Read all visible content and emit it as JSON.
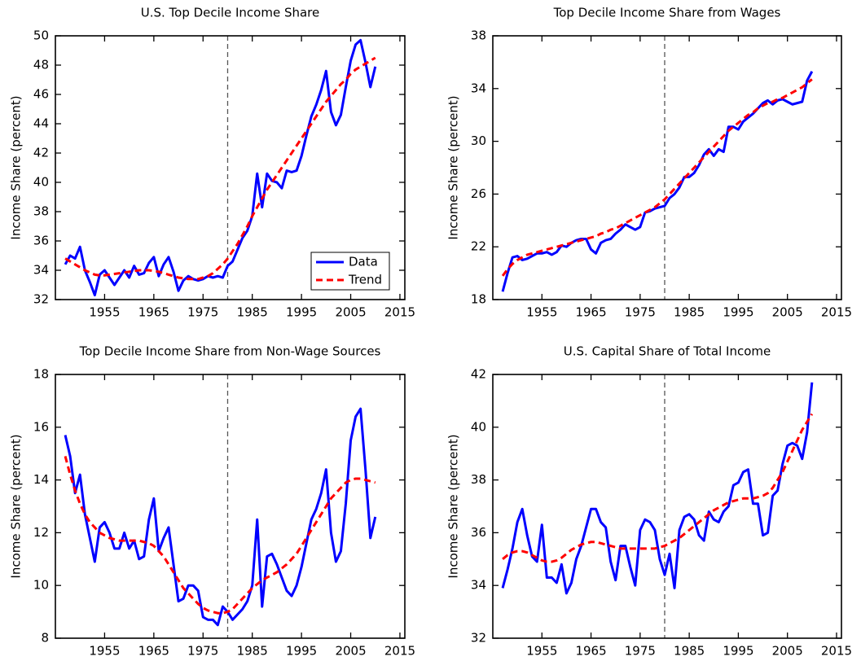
{
  "chart_data": [
    {
      "type": "line",
      "title": "U.S. Top Decile Income Share",
      "ylabel": "Income Share (percent)",
      "x": [
        1947,
        1948,
        1949,
        1950,
        1951,
        1952,
        1953,
        1954,
        1955,
        1956,
        1957,
        1958,
        1959,
        1960,
        1961,
        1962,
        1963,
        1964,
        1965,
        1966,
        1967,
        1968,
        1969,
        1970,
        1971,
        1972,
        1973,
        1974,
        1975,
        1976,
        1977,
        1978,
        1979,
        1980,
        1981,
        1982,
        1983,
        1984,
        1985,
        1986,
        1987,
        1988,
        1989,
        1990,
        1991,
        1992,
        1993,
        1994,
        1995,
        1996,
        1997,
        1998,
        1999,
        2000,
        2001,
        2002,
        2003,
        2004,
        2005,
        2006,
        2007,
        2008,
        2009,
        2010
      ],
      "series": [
        {
          "name": "Data",
          "color": "#0000ff",
          "dash": false,
          "values": [
            34.4,
            35.0,
            34.8,
            35.6,
            34.0,
            33.2,
            32.3,
            33.7,
            34.0,
            33.5,
            33.0,
            33.5,
            34.0,
            33.5,
            34.3,
            33.7,
            33.8,
            34.5,
            34.9,
            33.6,
            34.4,
            34.9,
            33.9,
            32.6,
            33.3,
            33.6,
            33.4,
            33.3,
            33.4,
            33.6,
            33.5,
            33.6,
            33.5,
            34.3,
            34.6,
            35.4,
            36.2,
            36.7,
            37.7,
            40.6,
            38.3,
            40.6,
            40.1,
            40.0,
            39.6,
            40.8,
            40.7,
            40.8,
            41.8,
            43.2,
            44.5,
            45.3,
            46.3,
            47.6,
            44.8,
            43.9,
            44.6,
            46.5,
            48.3,
            49.4,
            49.7,
            48.2,
            46.5,
            47.9
          ]
        },
        {
          "name": "Trend",
          "color": "#ff0000",
          "dash": true,
          "values": [
            34.8,
            34.6,
            34.4,
            34.2,
            34.0,
            33.85,
            33.7,
            33.65,
            33.65,
            33.7,
            33.75,
            33.8,
            33.85,
            33.9,
            33.95,
            34.0,
            34.0,
            34.0,
            33.95,
            33.9,
            33.8,
            33.7,
            33.6,
            33.5,
            33.45,
            33.4,
            33.4,
            33.4,
            33.5,
            33.6,
            33.8,
            34.1,
            34.4,
            34.8,
            35.3,
            35.8,
            36.4,
            37.0,
            37.7,
            38.3,
            38.9,
            39.5,
            40.0,
            40.5,
            41.0,
            41.5,
            42.0,
            42.5,
            43.0,
            43.5,
            44.0,
            44.5,
            45.0,
            45.5,
            45.9,
            46.3,
            46.7,
            47.0,
            47.4,
            47.7,
            47.9,
            48.1,
            48.3,
            48.5
          ]
        }
      ],
      "xlim": [
        1945,
        2016
      ],
      "xticks": [
        1955,
        1965,
        1975,
        1985,
        1995,
        2005,
        2015
      ],
      "ylim": [
        32,
        50
      ],
      "yticks": [
        32,
        34,
        36,
        38,
        40,
        42,
        44,
        46,
        48,
        50
      ],
      "vline": 1980,
      "legend": "lower right"
    },
    {
      "type": "line",
      "title": "Top Decile Income Share from Wages",
      "ylabel": "Income Share (percent)",
      "x": [
        1947,
        1948,
        1949,
        1950,
        1951,
        1952,
        1953,
        1954,
        1955,
        1956,
        1957,
        1958,
        1959,
        1960,
        1961,
        1962,
        1963,
        1964,
        1965,
        1966,
        1967,
        1968,
        1969,
        1970,
        1971,
        1972,
        1973,
        1974,
        1975,
        1976,
        1977,
        1978,
        1979,
        1980,
        1981,
        1982,
        1983,
        1984,
        1985,
        1986,
        1987,
        1988,
        1989,
        1990,
        1991,
        1992,
        1993,
        1994,
        1995,
        1996,
        1997,
        1998,
        1999,
        2000,
        2001,
        2002,
        2003,
        2004,
        2005,
        2006,
        2007,
        2008,
        2009,
        2010
      ],
      "series": [
        {
          "color": "#0000ff",
          "dash": false,
          "values": [
            18.6,
            20.0,
            21.2,
            21.3,
            21.0,
            21.1,
            21.3,
            21.5,
            21.5,
            21.6,
            21.4,
            21.6,
            22.1,
            22.0,
            22.3,
            22.5,
            22.6,
            22.6,
            21.8,
            21.5,
            22.3,
            22.5,
            22.6,
            23.0,
            23.3,
            23.7,
            23.5,
            23.3,
            23.5,
            24.6,
            24.7,
            24.9,
            25.0,
            25.1,
            25.7,
            26.0,
            26.5,
            27.3,
            27.3,
            27.6,
            28.2,
            29.0,
            29.4,
            28.9,
            29.4,
            29.2,
            31.1,
            31.1,
            30.9,
            31.5,
            31.8,
            32.1,
            32.5,
            32.9,
            33.1,
            32.8,
            33.1,
            33.2,
            33.0,
            32.8,
            32.9,
            33.0,
            34.6,
            35.3
          ]
        },
        {
          "color": "#ff0000",
          "dash": true,
          "values": [
            19.8,
            20.3,
            20.7,
            21.0,
            21.2,
            21.4,
            21.5,
            21.6,
            21.7,
            21.8,
            21.9,
            22.0,
            22.1,
            22.2,
            22.3,
            22.4,
            22.5,
            22.6,
            22.7,
            22.8,
            23.0,
            23.1,
            23.3,
            23.4,
            23.6,
            23.8,
            24.0,
            24.2,
            24.4,
            24.6,
            24.8,
            25.0,
            25.3,
            25.6,
            26.0,
            26.4,
            26.8,
            27.2,
            27.6,
            28.0,
            28.4,
            28.8,
            29.2,
            29.6,
            30.0,
            30.4,
            30.8,
            31.1,
            31.4,
            31.7,
            32.0,
            32.2,
            32.5,
            32.7,
            32.9,
            33.0,
            33.2,
            33.3,
            33.5,
            33.7,
            33.9,
            34.1,
            34.4,
            34.7
          ]
        }
      ],
      "xlim": [
        1945,
        2016
      ],
      "xticks": [
        1955,
        1965,
        1975,
        1985,
        1995,
        2005,
        2015
      ],
      "ylim": [
        18,
        38
      ],
      "yticks": [
        18,
        22,
        26,
        30,
        34,
        38
      ],
      "vline": 1980
    },
    {
      "type": "line",
      "title": "Top Decile Income Share from Non-Wage Sources",
      "ylabel": "Income Share (percent)",
      "x": [
        1947,
        1948,
        1949,
        1950,
        1951,
        1952,
        1953,
        1954,
        1955,
        1956,
        1957,
        1958,
        1959,
        1960,
        1961,
        1962,
        1963,
        1964,
        1965,
        1966,
        1967,
        1968,
        1969,
        1970,
        1971,
        1972,
        1973,
        1974,
        1975,
        1976,
        1977,
        1978,
        1979,
        1980,
        1981,
        1982,
        1983,
        1984,
        1985,
        1986,
        1987,
        1988,
        1989,
        1990,
        1991,
        1992,
        1993,
        1994,
        1995,
        1996,
        1997,
        1998,
        1999,
        2000,
        2001,
        2002,
        2003,
        2004,
        2005,
        2006,
        2007,
        2008,
        2009,
        2010
      ],
      "series": [
        {
          "color": "#0000ff",
          "dash": false,
          "values": [
            15.7,
            14.9,
            13.5,
            14.2,
            12.7,
            11.8,
            10.9,
            12.2,
            12.4,
            12.0,
            11.4,
            11.4,
            12.0,
            11.4,
            11.7,
            11.0,
            11.1,
            12.5,
            13.3,
            11.3,
            11.8,
            12.2,
            10.8,
            9.4,
            9.5,
            10.0,
            10.0,
            9.8,
            8.8,
            8.7,
            8.7,
            8.5,
            9.2,
            9.0,
            8.7,
            8.9,
            9.1,
            9.4,
            10.0,
            12.5,
            9.2,
            11.1,
            11.2,
            10.8,
            10.3,
            9.8,
            9.6,
            10.0,
            10.7,
            11.6,
            12.5,
            12.9,
            13.5,
            14.4,
            12.0,
            10.9,
            11.3,
            13.1,
            15.5,
            16.4,
            16.7,
            14.4,
            11.8,
            12.6
          ]
        },
        {
          "color": "#ff0000",
          "dash": true,
          "values": [
            14.9,
            14.2,
            13.6,
            13.1,
            12.7,
            12.4,
            12.2,
            12.0,
            11.9,
            11.8,
            11.75,
            11.7,
            11.7,
            11.7,
            11.7,
            11.7,
            11.65,
            11.6,
            11.5,
            11.3,
            11.1,
            10.8,
            10.5,
            10.2,
            9.9,
            9.7,
            9.5,
            9.3,
            9.15,
            9.05,
            9.0,
            8.95,
            8.95,
            9.0,
            9.1,
            9.3,
            9.5,
            9.7,
            9.9,
            10.05,
            10.2,
            10.3,
            10.4,
            10.5,
            10.65,
            10.8,
            11.0,
            11.2,
            11.5,
            11.8,
            12.1,
            12.4,
            12.7,
            13.0,
            13.3,
            13.5,
            13.7,
            13.9,
            14.0,
            14.05,
            14.05,
            14.0,
            13.95,
            13.9
          ]
        }
      ],
      "xlim": [
        1945,
        2016
      ],
      "xticks": [
        1955,
        1965,
        1975,
        1985,
        1995,
        2005,
        2015
      ],
      "ylim": [
        8,
        18
      ],
      "yticks": [
        8,
        10,
        12,
        14,
        16,
        18
      ],
      "vline": 1980
    },
    {
      "type": "line",
      "title": "U.S. Capital Share of Total Income",
      "ylabel": "Income Share (percent)",
      "x": [
        1947,
        1948,
        1949,
        1950,
        1951,
        1952,
        1953,
        1954,
        1955,
        1956,
        1957,
        1958,
        1959,
        1960,
        1961,
        1962,
        1963,
        1964,
        1965,
        1966,
        1967,
        1968,
        1969,
        1970,
        1971,
        1972,
        1973,
        1974,
        1975,
        1976,
        1977,
        1978,
        1979,
        1980,
        1981,
        1982,
        1983,
        1984,
        1985,
        1986,
        1987,
        1988,
        1989,
        1990,
        1991,
        1992,
        1993,
        1994,
        1995,
        1996,
        1997,
        1998,
        1999,
        2000,
        2001,
        2002,
        2003,
        2004,
        2005,
        2006,
        2007,
        2008,
        2009,
        2010
      ],
      "series": [
        {
          "color": "#0000ff",
          "dash": false,
          "values": [
            33.9,
            34.6,
            35.4,
            36.4,
            36.9,
            35.9,
            35.1,
            34.9,
            36.3,
            34.3,
            34.3,
            34.1,
            34.8,
            33.7,
            34.1,
            35.0,
            35.5,
            36.2,
            36.9,
            36.9,
            36.4,
            36.2,
            34.9,
            34.2,
            35.5,
            35.5,
            34.7,
            34.0,
            36.1,
            36.5,
            36.4,
            36.1,
            35.0,
            34.4,
            35.2,
            33.9,
            36.1,
            36.6,
            36.7,
            36.5,
            35.9,
            35.7,
            36.8,
            36.5,
            36.4,
            36.8,
            37.0,
            37.8,
            37.9,
            38.3,
            38.4,
            37.1,
            37.1,
            35.9,
            36.0,
            37.4,
            37.6,
            38.6,
            39.3,
            39.4,
            39.3,
            38.8,
            39.8,
            41.7
          ]
        },
        {
          "color": "#ff0000",
          "dash": true,
          "values": [
            35.0,
            35.15,
            35.25,
            35.3,
            35.3,
            35.25,
            35.15,
            35.05,
            34.95,
            34.9,
            34.9,
            34.95,
            35.05,
            35.2,
            35.35,
            35.45,
            35.55,
            35.6,
            35.65,
            35.65,
            35.6,
            35.55,
            35.5,
            35.45,
            35.4,
            35.4,
            35.4,
            35.4,
            35.4,
            35.4,
            35.4,
            35.4,
            35.45,
            35.5,
            35.6,
            35.7,
            35.8,
            35.95,
            36.1,
            36.25,
            36.4,
            36.55,
            36.7,
            36.85,
            36.95,
            37.05,
            37.15,
            37.2,
            37.25,
            37.3,
            37.3,
            37.3,
            37.35,
            37.4,
            37.5,
            37.7,
            38.0,
            38.3,
            38.7,
            39.1,
            39.5,
            39.9,
            40.2,
            40.5
          ]
        }
      ],
      "xlim": [
        1945,
        2016
      ],
      "xticks": [
        1955,
        1965,
        1975,
        1985,
        1995,
        2005,
        2015
      ],
      "ylim": [
        32,
        42
      ],
      "yticks": [
        32,
        34,
        36,
        38,
        40,
        42
      ],
      "vline": 1980
    }
  ]
}
